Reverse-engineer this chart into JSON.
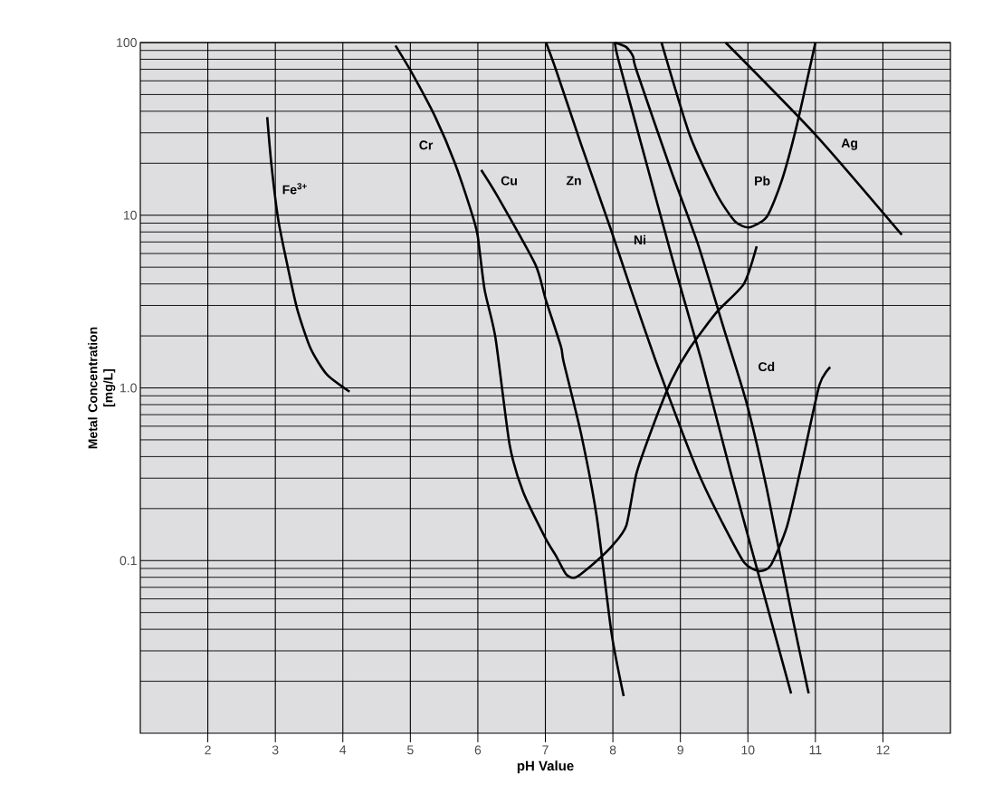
{
  "chart_data": {
    "type": "line",
    "xlabel": "pH Value",
    "ylabel": "Metal Concentration [mg/L]",
    "xlim": [
      1,
      13
    ],
    "ylim": [
      0.01,
      100
    ],
    "log": "y",
    "grid": true,
    "legend": false,
    "xticks": [
      2,
      3,
      4,
      5,
      6,
      7,
      8,
      9,
      10,
      11,
      12
    ],
    "yticks": [
      0.1,
      {
        "value": 1,
        "label": "1.0"
      },
      10,
      100
    ],
    "series": [
      {
        "name": "Fe$^{3+}$",
        "color": "#000000",
        "x": [
          2.88,
          2.94,
          3.04,
          3.15,
          3.32,
          3.52,
          3.76,
          4.1
        ],
        "values": [
          37,
          20,
          9.6,
          5.8,
          2.9,
          1.7,
          1.2,
          0.95
        ]
      },
      {
        "name": "Cr",
        "color": "#000000",
        "x": [
          4.78,
          5.02,
          5.37,
          5.66,
          5.93,
          6.0,
          6.1,
          6.26,
          6.47,
          6.67,
          7.0,
          7.16,
          7.31,
          7.45,
          7.74,
          8.0,
          8.2,
          8.35,
          8.6,
          8.87,
          9.14,
          9.54,
          9.94,
          10.13
        ],
        "values": [
          96,
          67,
          37,
          20,
          9.7,
          7.5,
          3.7,
          1.96,
          0.47,
          0.25,
          0.135,
          0.106,
          0.083,
          0.08,
          0.098,
          0.123,
          0.16,
          0.32,
          0.61,
          1.11,
          1.7,
          2.75,
          4.0,
          6.6
        ]
      },
      {
        "name": "Cu",
        "color": "#000000",
        "x": [
          6.05,
          6.29,
          6.85,
          7.0,
          7.23,
          7.27,
          7.53,
          7.76,
          7.98,
          8.16
        ],
        "values": [
          18.3,
          12.9,
          5.2,
          3.3,
          1.74,
          1.42,
          0.54,
          0.18,
          0.038,
          0.0164
        ]
      },
      {
        "name": "Zn",
        "color": "#000000",
        "x": [
          7.01,
          7.16,
          7.53,
          7.96,
          8.27,
          8.63,
          9.03,
          9.3,
          9.62,
          9.94,
          10.16,
          10.34,
          10.58,
          10.81,
          11.06,
          11.22
        ],
        "values": [
          100,
          69,
          25.7,
          8.5,
          3.7,
          1.45,
          0.55,
          0.3,
          0.166,
          0.098,
          0.087,
          0.094,
          0.158,
          0.38,
          1.04,
          1.32
        ]
      },
      {
        "name": "Ni",
        "color": "#000000",
        "x": [
          8.03,
          8.08,
          8.43,
          8.87,
          9.31,
          9.74,
          10.21,
          10.64
        ],
        "values": [
          100,
          80,
          25,
          5.8,
          1.45,
          0.33,
          0.07,
          0.017
        ]
      },
      {
        "name": "Pb",
        "color": "#000000",
        "x": [
          8.72,
          9.14,
          9.54,
          9.81,
          10.02,
          10.28,
          10.5,
          10.72,
          11.0
        ],
        "values": [
          100,
          29,
          13.2,
          9.2,
          8.5,
          9.8,
          15.8,
          32.6,
          100
        ]
      },
      {
        "name": "Ag",
        "color": "#000000",
        "x": [
          9.67,
          11.01,
          12.28
        ],
        "values": [
          100,
          29,
          7.7
        ]
      },
      {
        "name": "Cd",
        "color": "#000000",
        "x": [
          8.03,
          8.2,
          8.3,
          8.35,
          8.87,
          9.26,
          9.67,
          9.98,
          10.28,
          10.64,
          10.9
        ],
        "values": [
          100,
          94,
          83,
          69,
          17.8,
          6.8,
          2.04,
          0.82,
          0.26,
          0.051,
          0.017
        ]
      }
    ]
  }
}
